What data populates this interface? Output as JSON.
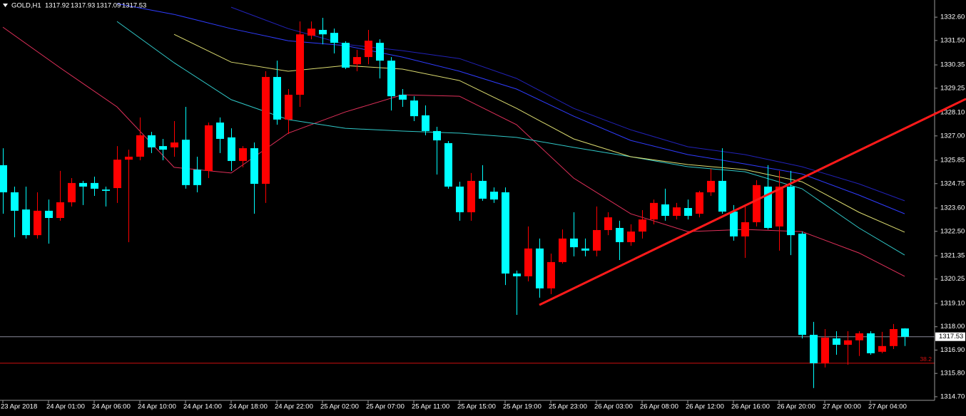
{
  "chart_data": {
    "type": "candlestick",
    "title": "GOLD,H1",
    "up_color": "#ff0000",
    "down_color": "#00ffff",
    "open": [
      1325.62,
      1324.34,
      1323.53,
      1322.32,
      1323.47,
      1323.13,
      1323.87,
      1324.78,
      1324.78,
      1324.47,
      1324.54,
      1325.88,
      1326.02,
      1327.03,
      1326.52,
      1326.46,
      1326.82,
      1325.41,
      1325.35,
      1327.63,
      1326.93,
      1325.82,
      1326.42,
      1324.74,
      1329.78,
      1327.77,
      1328.94,
      1331.73,
      1332.0,
      1331.86,
      1331.39,
      1330.38,
      1330.72,
      1331.39,
      1330.55,
      1328.94,
      1328.67,
      1327.97,
      1327.23,
      1326.66,
      1324.61,
      1323.4,
      1324.88,
      1324.37,
      1324.34,
      1320.51,
      1320.38,
      1321.69,
      1319.81,
      1321.05,
      1322.16,
      1321.69,
      1321.59,
      1322.56,
      1322.66,
      1321.99,
      1322.49,
      1323.06,
      1323.77,
      1323.23,
      1323.6,
      1323.33,
      1324.34,
      1324.88,
      1323.43,
      1322.26,
      1322.93,
      1324.61,
      1322.73,
      1324.61,
      1322.39,
      1317.62,
      1316.28,
      1317.45,
      1317.15,
      1317.36,
      1317.69,
      1316.82,
      1317.09,
      1317.92
    ],
    "high": [
      1326.42,
      1324.61,
      1324.61,
      1324.34,
      1324.0,
      1325.35,
      1325.01,
      1324.88,
      1325.08,
      1324.61,
      1326.52,
      1326.35,
      1327.87,
      1327.19,
      1326.86,
      1327.7,
      1328.37,
      1326.02,
      1327.63,
      1327.87,
      1327.36,
      1326.52,
      1326.69,
      1330.05,
      1330.55,
      1329.21,
      1332.4,
      1332.4,
      1332.57,
      1332.06,
      1331.46,
      1331.06,
      1332.0,
      1331.56,
      1330.72,
      1329.21,
      1328.87,
      1328.44,
      1327.43,
      1326.76,
      1324.84,
      1325.25,
      1325.62,
      1324.57,
      1324.57,
      1320.65,
      1322.73,
      1322.16,
      1321.45,
      1322.59,
      1323.4,
      1322.16,
      1323.67,
      1323.4,
      1323.0,
      1322.83,
      1323.5,
      1324.0,
      1324.51,
      1323.84,
      1324.0,
      1324.41,
      1325.45,
      1326.42,
      1323.74,
      1323.67,
      1324.91,
      1325.62,
      1325.35,
      1325.35,
      1322.49,
      1318.23,
      1317.89,
      1317.79,
      1317.79,
      1317.79,
      1317.79,
      1317.76,
      1318.13,
      1317.93
    ],
    "low": [
      1323.33,
      1322.22,
      1322.16,
      1322.16,
      1321.92,
      1323.0,
      1323.67,
      1323.74,
      1324.17,
      1323.67,
      1323.84,
      1321.99,
      1325.85,
      1326.19,
      1325.85,
      1326.02,
      1324.51,
      1324.34,
      1325.01,
      1326.19,
      1325.35,
      1325.52,
      1323.33,
      1323.84,
      1327.53,
      1327.09,
      1328.37,
      1331.56,
      1331.32,
      1330.89,
      1330.15,
      1330.05,
      1330.38,
      1329.71,
      1328.2,
      1328.37,
      1327.7,
      1327.03,
      1325.18,
      1324.51,
      1323.0,
      1323.0,
      1323.94,
      1323.84,
      1319.97,
      1318.56,
      1320.14,
      1319.37,
      1319.54,
      1320.98,
      1321.32,
      1321.32,
      1321.32,
      1322.32,
      1321.15,
      1321.82,
      1322.16,
      1322.83,
      1323.0,
      1323.06,
      1323.06,
      1323.16,
      1324.17,
      1323.33,
      1322.06,
      1321.25,
      1322.73,
      1322.59,
      1321.59,
      1321.38,
      1317.45,
      1315.11,
      1316.08,
      1316.68,
      1316.21,
      1316.62,
      1316.68,
      1316.75,
      1316.95,
      1317.09
    ],
    "close": [
      1324.34,
      1323.47,
      1322.32,
      1323.47,
      1323.13,
      1323.87,
      1324.78,
      1324.61,
      1324.51,
      1324.41,
      1325.88,
      1326.02,
      1327.03,
      1326.46,
      1326.35,
      1326.69,
      1324.68,
      1324.68,
      1327.5,
      1326.86,
      1325.82,
      1326.42,
      1324.74,
      1329.78,
      1327.77,
      1328.94,
      1331.79,
      1332.06,
      1331.79,
      1331.39,
      1330.22,
      1330.72,
      1331.49,
      1330.55,
      1328.87,
      1328.71,
      1327.93,
      1327.23,
      1326.79,
      1324.61,
      1323.4,
      1324.88,
      1324.04,
      1324.0,
      1320.51,
      1320.38,
      1321.69,
      1319.81,
      1321.05,
      1322.16,
      1321.75,
      1321.59,
      1322.56,
      1323.16,
      1321.99,
      1322.49,
      1323.06,
      1323.84,
      1323.23,
      1323.63,
      1323.23,
      1324.34,
      1324.88,
      1323.43,
      1322.26,
      1322.93,
      1324.68,
      1322.66,
      1324.61,
      1322.32,
      1317.62,
      1316.28,
      1317.49,
      1317.15,
      1317.36,
      1317.69,
      1316.75,
      1317.09,
      1317.89,
      1317.53
    ],
    "moving_averages": [
      {
        "color": "#e0305a",
        "x": [
          0,
          5,
          10,
          15,
          20,
          25,
          30,
          35,
          40,
          45,
          50,
          55,
          60,
          65,
          70,
          75,
          79
        ],
        "values": [
          1332.13,
          1330.22,
          1328.37,
          1325.52,
          1325.25,
          1327.13,
          1328.13,
          1328.94,
          1328.87,
          1327.53,
          1325.01,
          1323.33,
          1322.49,
          1322.59,
          1322.49,
          1321.48,
          1320.38
        ]
      },
      {
        "color": "#30c8c8",
        "x": [
          10,
          15,
          20,
          25,
          30,
          35,
          40,
          45,
          50,
          55,
          60,
          65,
          70,
          75,
          79
        ],
        "values": [
          1332.4,
          1330.45,
          1328.71,
          1327.77,
          1327.36,
          1327.23,
          1327.13,
          1326.93,
          1326.46,
          1326.02,
          1325.55,
          1325.31,
          1324.51,
          1322.66,
          1321.38
        ]
      },
      {
        "color": "#dcdc70",
        "x": [
          15,
          20,
          25,
          30,
          35,
          40,
          45,
          50,
          55,
          60,
          65,
          70,
          75,
          79
        ],
        "values": [
          1331.79,
          1330.48,
          1330.05,
          1330.32,
          1330.15,
          1329.61,
          1328.3,
          1326.86,
          1326.02,
          1325.65,
          1325.41,
          1324.84,
          1323.4,
          1322.46
        ]
      },
      {
        "color": "#2f3cff",
        "x": [
          10,
          15,
          20,
          25,
          30,
          35,
          40,
          45,
          50,
          55,
          60,
          65,
          70,
          75,
          79
        ],
        "values": [
          1333.24,
          1332.73,
          1332.06,
          1331.49,
          1331.26,
          1330.72,
          1330.05,
          1329.21,
          1327.93,
          1326.79,
          1326.12,
          1325.68,
          1325.21,
          1324.21,
          1323.33
        ]
      },
      {
        "color": "#2222b8",
        "x": [
          20,
          25,
          30,
          35,
          40,
          45,
          50,
          55,
          60,
          65,
          70,
          75,
          79
        ],
        "values": [
          1333.07,
          1332.06,
          1331.32,
          1331.02,
          1330.65,
          1329.71,
          1328.3,
          1327.29,
          1326.49,
          1326.12,
          1325.55,
          1324.74,
          1323.94
        ]
      }
    ],
    "trend_line": {
      "color": "#ff1a1a",
      "x": [
        47,
        69
      ],
      "values": [
        1319.03,
        1324.75
      ]
    },
    "fib_level": {
      "ratio": 38.2,
      "value": 1316.28,
      "color": "#d01010"
    },
    "price_line_color": "#8a8a9a",
    "xlim": [
      -0.25,
      81.625
    ],
    "ylim": [
      1314.53,
      1333.41
    ],
    "yticks": [
      {
        "value": 1332.6,
        "label": "1332.60"
      },
      {
        "value": 1331.5,
        "label": "1331.50"
      },
      {
        "value": 1330.35,
        "label": "1330.35"
      },
      {
        "value": 1329.25,
        "label": "1329.25"
      },
      {
        "value": 1328.1,
        "label": "1328.10"
      },
      {
        "value": 1327,
        "label": "1327.00"
      },
      {
        "value": 1325.85,
        "label": "1325.85"
      },
      {
        "value": 1324.75,
        "label": "1324.75"
      },
      {
        "value": 1323.6,
        "label": "1323.60"
      },
      {
        "value": 1322.5,
        "label": "1322.50"
      },
      {
        "value": 1321.35,
        "label": "1321.35"
      },
      {
        "value": 1320.25,
        "label": "1320.25"
      },
      {
        "value": 1319.1,
        "label": "1319.10"
      },
      {
        "value": 1318,
        "label": "1318.00"
      },
      {
        "value": 1316.9,
        "label": "1316.90"
      },
      {
        "value": 1315.8,
        "label": "1315.80"
      },
      {
        "value": 1314.7,
        "label": "1314.70"
      }
    ],
    "xticks": [
      {
        "value": 0,
        "label": "23 Apr 2018"
      },
      {
        "value": 4,
        "label": "24 Apr 01:00"
      },
      {
        "value": 8,
        "label": "24 Apr 06:00"
      },
      {
        "value": 12,
        "label": "24 Apr 10:00"
      },
      {
        "value": 16,
        "label": "24 Apr 14:00"
      },
      {
        "value": 20,
        "label": "24 Apr 18:00"
      },
      {
        "value": 24,
        "label": "24 Apr 22:00"
      },
      {
        "value": 28,
        "label": "25 Apr 02:00"
      },
      {
        "value": 32,
        "label": "25 Apr 07:00"
      },
      {
        "value": 36,
        "label": "25 Apr 11:00"
      },
      {
        "value": 40,
        "label": "25 Apr 15:00"
      },
      {
        "value": 44,
        "label": "25 Apr 19:00"
      },
      {
        "value": 48,
        "label": "25 Apr 23:00"
      },
      {
        "value": 52,
        "label": "26 Apr 03:00"
      },
      {
        "value": 56,
        "label": "26 Apr 08:00"
      },
      {
        "value": 60,
        "label": "26 Apr 12:00"
      },
      {
        "value": 64,
        "label": "26 Apr 16:00"
      },
      {
        "value": 68,
        "label": "26 Apr 20:00"
      },
      {
        "value": 72,
        "label": "27 Apr 00:00"
      },
      {
        "value": 76,
        "label": "27 Apr 04:00"
      }
    ],
    "grid": false
  }
}
